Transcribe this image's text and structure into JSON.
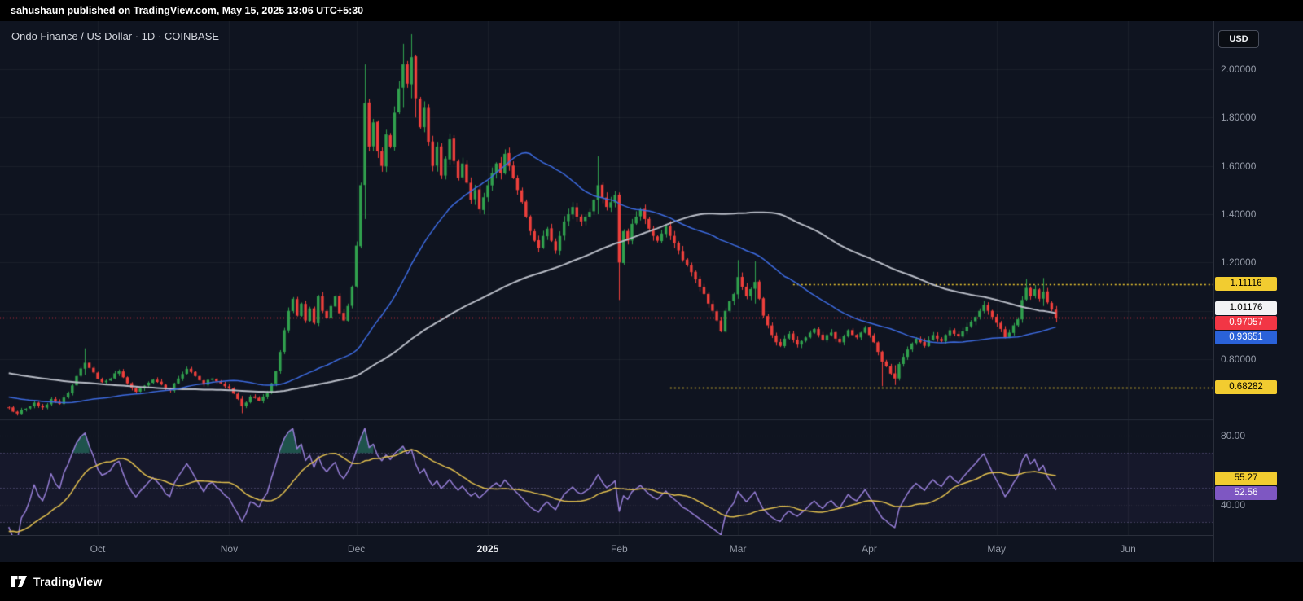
{
  "header": {
    "text": "sahushaun published on TradingView.com, May 15, 2025 13:06 UTC+5:30"
  },
  "chart": {
    "symbol_title": "Ondo Finance / US Dollar · 1D · COINBASE",
    "currency_button": "USD",
    "y_axis_labels": [
      {
        "text": "2.00000",
        "value": 2.0
      },
      {
        "text": "1.80000",
        "value": 1.8
      },
      {
        "text": "1.60000",
        "value": 1.6
      },
      {
        "text": "1.40000",
        "value": 1.4
      },
      {
        "text": "1.20000",
        "value": 1.2
      },
      {
        "text": "0.80000",
        "value": 0.8
      }
    ],
    "price_tags": [
      {
        "text": "1.11116",
        "value": 1.11116,
        "bg": "#f2cc30",
        "fg": "#000000",
        "name": "level-tag-upper"
      },
      {
        "text": "1.01176",
        "value": 1.01176,
        "bg": "#f2f3f5",
        "fg": "#000000",
        "name": "ma-slow-tag"
      },
      {
        "text": "0.97057",
        "value": 0.97057,
        "bg": "#f23645",
        "fg": "#ffffff",
        "name": "last-price-tag"
      },
      {
        "text": "0.93651",
        "value": 0.93651,
        "bg": "#2a62d9",
        "fg": "#ffffff",
        "name": "ma-fast-tag"
      },
      {
        "text": "0.68282",
        "value": 0.68282,
        "bg": "#f2cc30",
        "fg": "#000000",
        "name": "level-tag-lower"
      }
    ],
    "rsi_axis_labels": [
      {
        "text": "80.00",
        "value": 80
      },
      {
        "text": "40.00",
        "value": 40
      }
    ],
    "rsi_tags": [
      {
        "text": "55.27",
        "value": 55.27,
        "bg": "#f2cc30",
        "fg": "#000000",
        "name": "rsi-ma-tag"
      },
      {
        "text": "52.56",
        "value": 52.56,
        "bg": "#7e57c2",
        "fg": "#ffffff",
        "name": "rsi-tag"
      }
    ],
    "x_axis_labels": [
      {
        "text": "Oct",
        "day": 21,
        "major": false
      },
      {
        "text": "Nov",
        "day": 52,
        "major": false
      },
      {
        "text": "Dec",
        "day": 82,
        "major": false
      },
      {
        "text": "2025",
        "day": 113,
        "major": true
      },
      {
        "text": "Feb",
        "day": 144,
        "major": false
      },
      {
        "text": "Mar",
        "day": 172,
        "major": false
      },
      {
        "text": "Apr",
        "day": 203,
        "major": false
      },
      {
        "text": "May",
        "day": 233,
        "major": false
      },
      {
        "text": "Jun",
        "day": 264,
        "major": false
      }
    ]
  },
  "chart_data": {
    "type": "candlestick",
    "symbol": "ONDO/USD",
    "timeframe": "1D",
    "exchange": "COINBASE",
    "price_axis_visible_range": [
      0.55,
      2.19
    ],
    "rsi_axis_visible_range": [
      22,
      89
    ],
    "price_gridlines": [
      2.0,
      1.8,
      1.6,
      1.4,
      1.2,
      1.0,
      0.8
    ],
    "last_close": 0.97057,
    "levels": [
      {
        "value": 1.11116,
        "color": "#f2cc30",
        "dash": [
          2,
          3
        ],
        "from_day": 185
      },
      {
        "value": 0.68282,
        "color": "#f2cc30",
        "dash": [
          2,
          3
        ],
        "from_day": 156
      },
      {
        "value": 0.97057,
        "color": "#f23645",
        "dash": [
          1,
          3
        ],
        "from_day": null
      }
    ],
    "colors": {
      "up": "#31a14e",
      "down": "#ef403c",
      "ma_fast": "#3d6be0",
      "ma_slow": "#b8bcc6",
      "rsi": "#977fd7",
      "rsi_ma": "#e2c04f",
      "rsi_band_fill": "rgba(126,87,194,0.07)",
      "rsi_overbought_fill": "rgba(38,110,96,0.7)",
      "grid": "rgba(255,255,255,0.05)"
    },
    "indicators": {
      "ma_fast": {
        "type": "SMA",
        "period": 40,
        "current_value": 0.93651
      },
      "ma_slow": {
        "type": "SMA",
        "period": 100,
        "current_value": 1.01176
      },
      "rsi": {
        "period": 14,
        "bands": [
          70,
          50,
          30
        ],
        "current_value": 52.56,
        "ma_period": 14,
        "ma_current_value": 55.27
      }
    },
    "prehistory_close_anchors": [
      [
        -120,
        0.95
      ],
      [
        -110,
        0.9
      ],
      [
        -100,
        0.88
      ],
      [
        -90,
        0.84
      ],
      [
        -80,
        0.88
      ],
      [
        -70,
        0.82
      ],
      [
        -60,
        0.78
      ],
      [
        -50,
        0.74
      ],
      [
        -40,
        0.7
      ],
      [
        -30,
        0.67
      ],
      [
        -20,
        0.64
      ],
      [
        -10,
        0.615
      ],
      [
        -1,
        0.6
      ]
    ],
    "close_anchors": [
      [
        0,
        0.6
      ],
      [
        2,
        0.575
      ],
      [
        4,
        0.595
      ],
      [
        6,
        0.62
      ],
      [
        8,
        0.6
      ],
      [
        10,
        0.635
      ],
      [
        12,
        0.615
      ],
      [
        14,
        0.66
      ],
      [
        16,
        0.73
      ],
      [
        18,
        0.785
      ],
      [
        20,
        0.745
      ],
      [
        22,
        0.705
      ],
      [
        24,
        0.72
      ],
      [
        26,
        0.75
      ],
      [
        28,
        0.7
      ],
      [
        30,
        0.665
      ],
      [
        32,
        0.69
      ],
      [
        34,
        0.715
      ],
      [
        36,
        0.695
      ],
      [
        38,
        0.67
      ],
      [
        40,
        0.72
      ],
      [
        42,
        0.76
      ],
      [
        44,
        0.73
      ],
      [
        46,
        0.695
      ],
      [
        48,
        0.72
      ],
      [
        50,
        0.7
      ],
      [
        52,
        0.68
      ],
      [
        54,
        0.635
      ],
      [
        55,
        0.605
      ],
      [
        57,
        0.645
      ],
      [
        59,
        0.628
      ],
      [
        61,
        0.66
      ],
      [
        62,
        0.7
      ],
      [
        63,
        0.75
      ],
      [
        64,
        0.83
      ],
      [
        65,
        0.92
      ],
      [
        66,
        1.0
      ],
      [
        67,
        1.05
      ],
      [
        68,
        0.98
      ],
      [
        69,
        1.03
      ],
      [
        70,
        0.96
      ],
      [
        71,
        1.01
      ],
      [
        72,
        0.95
      ],
      [
        73,
        1.06
      ],
      [
        74,
        1.0
      ],
      [
        75,
        0.97
      ],
      [
        76,
        1.02
      ],
      [
        77,
        1.06
      ],
      [
        78,
        0.99
      ],
      [
        79,
        0.96
      ],
      [
        80,
        1.02
      ],
      [
        81,
        1.1
      ],
      [
        82,
        1.27
      ],
      [
        83,
        1.52
      ],
      [
        84,
        1.86
      ],
      [
        85,
        1.68
      ],
      [
        86,
        1.78
      ],
      [
        87,
        1.66
      ],
      [
        88,
        1.6
      ],
      [
        89,
        1.73
      ],
      [
        90,
        1.68
      ],
      [
        91,
        1.82
      ],
      [
        92,
        1.92
      ],
      [
        93,
        2.02
      ],
      [
        94,
        1.94
      ],
      [
        95,
        2.05
      ],
      [
        96,
        1.88
      ],
      [
        97,
        1.76
      ],
      [
        98,
        1.84
      ],
      [
        99,
        1.7
      ],
      [
        100,
        1.6
      ],
      [
        101,
        1.68
      ],
      [
        102,
        1.56
      ],
      [
        103,
        1.63
      ],
      [
        104,
        1.71
      ],
      [
        105,
        1.62
      ],
      [
        106,
        1.55
      ],
      [
        107,
        1.61
      ],
      [
        108,
        1.53
      ],
      [
        109,
        1.46
      ],
      [
        110,
        1.5
      ],
      [
        111,
        1.42
      ],
      [
        112,
        1.47
      ],
      [
        113,
        1.52
      ],
      [
        114,
        1.57
      ],
      [
        115,
        1.61
      ],
      [
        116,
        1.57
      ],
      [
        117,
        1.65
      ],
      [
        118,
        1.6
      ],
      [
        119,
        1.55
      ],
      [
        120,
        1.5
      ],
      [
        121,
        1.45
      ],
      [
        122,
        1.39
      ],
      [
        123,
        1.33
      ],
      [
        124,
        1.29
      ],
      [
        125,
        1.26
      ],
      [
        126,
        1.31
      ],
      [
        127,
        1.34
      ],
      [
        128,
        1.29
      ],
      [
        129,
        1.25
      ],
      [
        130,
        1.31
      ],
      [
        131,
        1.37
      ],
      [
        132,
        1.4
      ],
      [
        133,
        1.43
      ],
      [
        134,
        1.39
      ],
      [
        135,
        1.37
      ],
      [
        136,
        1.39
      ],
      [
        137,
        1.41
      ],
      [
        138,
        1.46
      ],
      [
        139,
        1.52
      ],
      [
        140,
        1.47
      ],
      [
        141,
        1.43
      ],
      [
        142,
        1.45
      ],
      [
        143,
        1.48
      ],
      [
        144,
        1.2
      ],
      [
        145,
        1.33
      ],
      [
        146,
        1.29
      ],
      [
        147,
        1.36
      ],
      [
        148,
        1.39
      ],
      [
        149,
        1.42
      ],
      [
        150,
        1.38
      ],
      [
        151,
        1.34
      ],
      [
        152,
        1.31
      ],
      [
        153,
        1.29
      ],
      [
        154,
        1.32
      ],
      [
        155,
        1.35
      ],
      [
        156,
        1.31
      ],
      [
        157,
        1.28
      ],
      [
        158,
        1.25
      ],
      [
        159,
        1.21
      ],
      [
        160,
        1.19
      ],
      [
        161,
        1.16
      ],
      [
        162,
        1.13
      ],
      [
        163,
        1.1
      ],
      [
        164,
        1.07
      ],
      [
        165,
        1.03
      ],
      [
        166,
        1.0
      ],
      [
        167,
        0.96
      ],
      [
        168,
        0.915
      ],
      [
        169,
        1.0
      ],
      [
        170,
        1.04
      ],
      [
        171,
        1.07
      ],
      [
        172,
        1.14
      ],
      [
        173,
        1.1
      ],
      [
        174,
        1.06
      ],
      [
        175,
        1.09
      ],
      [
        176,
        1.12
      ],
      [
        177,
        1.05
      ],
      [
        178,
        0.98
      ],
      [
        179,
        0.94
      ],
      [
        180,
        0.9
      ],
      [
        181,
        0.87
      ],
      [
        182,
        0.855
      ],
      [
        183,
        0.885
      ],
      [
        184,
        0.905
      ],
      [
        185,
        0.88
      ],
      [
        186,
        0.86
      ],
      [
        187,
        0.875
      ],
      [
        188,
        0.89
      ],
      [
        189,
        0.91
      ],
      [
        190,
        0.925
      ],
      [
        191,
        0.9
      ],
      [
        192,
        0.88
      ],
      [
        193,
        0.9
      ],
      [
        194,
        0.91
      ],
      [
        195,
        0.885
      ],
      [
        196,
        0.87
      ],
      [
        197,
        0.895
      ],
      [
        198,
        0.92
      ],
      [
        199,
        0.9
      ],
      [
        200,
        0.89
      ],
      [
        201,
        0.91
      ],
      [
        202,
        0.93
      ],
      [
        203,
        0.9
      ],
      [
        204,
        0.87
      ],
      [
        205,
        0.83
      ],
      [
        206,
        0.79
      ],
      [
        207,
        0.77
      ],
      [
        208,
        0.74
      ],
      [
        209,
        0.72
      ],
      [
        210,
        0.78
      ],
      [
        211,
        0.81
      ],
      [
        212,
        0.84
      ],
      [
        213,
        0.865
      ],
      [
        214,
        0.885
      ],
      [
        215,
        0.87
      ],
      [
        216,
        0.855
      ],
      [
        217,
        0.88
      ],
      [
        218,
        0.9
      ],
      [
        219,
        0.885
      ],
      [
        220,
        0.875
      ],
      [
        221,
        0.9
      ],
      [
        222,
        0.92
      ],
      [
        223,
        0.905
      ],
      [
        224,
        0.895
      ],
      [
        225,
        0.915
      ],
      [
        226,
        0.935
      ],
      [
        227,
        0.955
      ],
      [
        228,
        0.975
      ],
      [
        229,
        1.0
      ],
      [
        230,
        1.025
      ],
      [
        231,
        1.0
      ],
      [
        232,
        0.975
      ],
      [
        233,
        0.95
      ],
      [
        234,
        0.925
      ],
      [
        235,
        0.89
      ],
      [
        236,
        0.91
      ],
      [
        237,
        0.94
      ],
      [
        238,
        0.965
      ],
      [
        239,
        1.045
      ],
      [
        240,
        1.095
      ],
      [
        241,
        1.06
      ],
      [
        242,
        1.09
      ],
      [
        243,
        1.05
      ],
      [
        244,
        1.08
      ],
      [
        245,
        1.035
      ],
      [
        246,
        1.005
      ],
      [
        247,
        0.97057
      ]
    ],
    "wick_overrides": {
      "18": [
        0.845,
        0.735
      ],
      "55": [
        0.648,
        0.576
      ],
      "84": [
        2.02,
        1.38
      ],
      "93": [
        2.105,
        1.84
      ],
      "95": [
        2.145,
        1.88
      ],
      "96": [
        2.06,
        1.8
      ],
      "139": [
        1.64,
        1.4
      ],
      "144": [
        1.49,
        1.045
      ],
      "172": [
        1.21,
        1.05
      ],
      "176": [
        1.205,
        1.03
      ],
      "206": [
        0.835,
        0.688
      ],
      "209": [
        0.775,
        0.693
      ],
      "240": [
        1.132,
        1.04
      ],
      "244": [
        1.136,
        1.02
      ],
      "247": [
        1.02,
        0.952
      ]
    }
  },
  "footer": {
    "brand": "TradingView"
  }
}
